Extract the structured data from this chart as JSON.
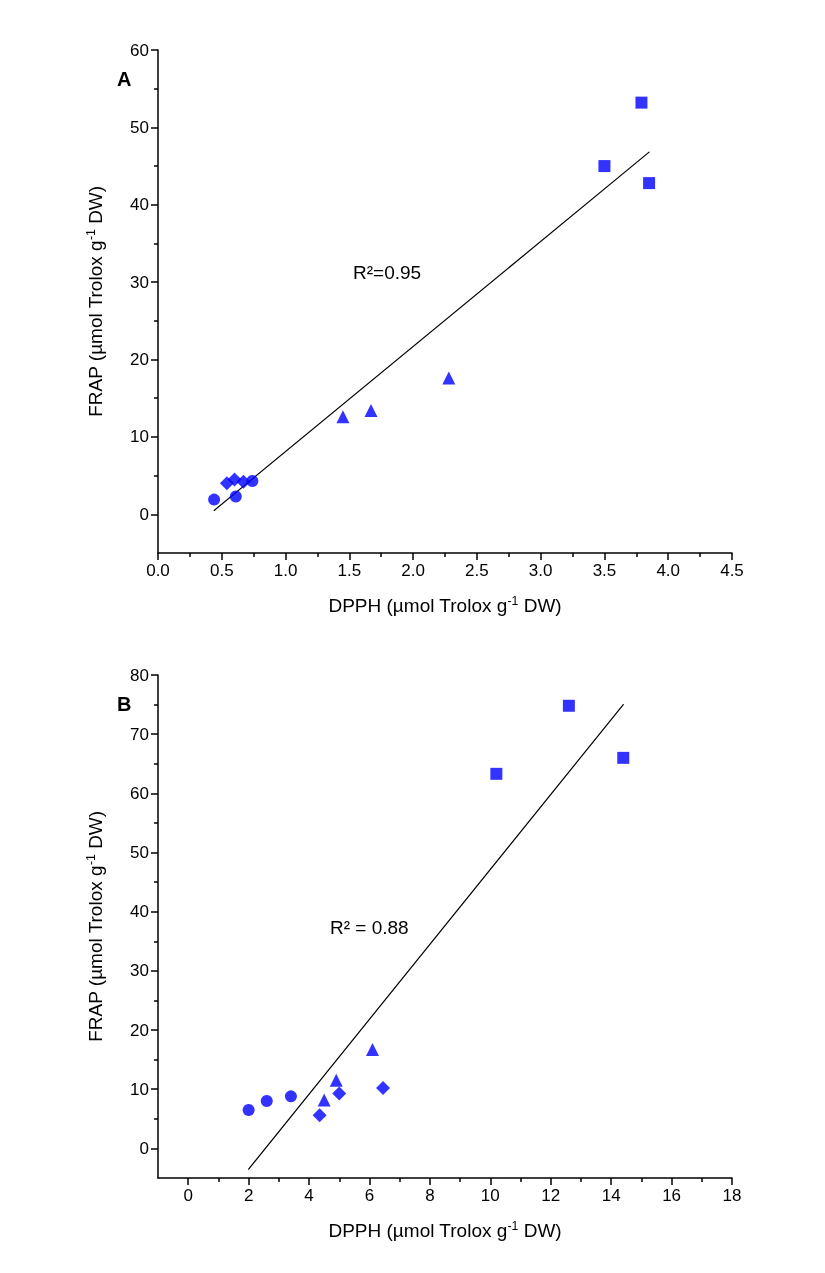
{
  "chart_data": [
    {
      "type": "scatter",
      "title": "A",
      "xlabel": "DPPH (µmol Trolox g$^{-1}$ DW)",
      "ylabel": "FRAP (µmol Trolox g$^{-1}$ DW)",
      "xlim": [
        0,
        4.5
      ],
      "xticks": [
        {
          "value": 0,
          "label": "0.0"
        },
        0.5,
        {
          "value": 1,
          "label": "1.0"
        },
        1.5,
        {
          "value": 2,
          "label": "2.0"
        },
        2.5,
        {
          "value": 3,
          "label": "3.0"
        },
        3.5,
        {
          "value": 4,
          "label": "4.0"
        },
        4.5
      ],
      "ylim": [
        -5,
        60
      ],
      "yticks": [
        0,
        10,
        20,
        30,
        40,
        50,
        60
      ],
      "grid": false,
      "series": [
        {
          "color": "#0000ff",
          "marker": "circle",
          "x": [
            0.44,
            0.61,
            0.74
          ],
          "values": [
            1.9,
            2.3,
            4.3
          ]
        },
        {
          "color": "#0000ff",
          "marker": "diamond",
          "x": [
            0.54,
            0.6,
            0.67
          ],
          "values": [
            4.0,
            4.5,
            4.2
          ]
        },
        {
          "color": "#0000ff",
          "marker": "triangle",
          "x": [
            1.45,
            1.67,
            2.28
          ],
          "values": [
            12.6,
            13.4,
            17.6
          ]
        },
        {
          "color": "#0000ff",
          "marker": "square",
          "x": [
            3.5,
            3.79,
            3.85
          ],
          "values": [
            45,
            53.2,
            42.8
          ]
        },
        {
          "type": "line",
          "color": "#000000",
          "marker": "none",
          "line_style": "solid",
          "x": [
            0.44,
            3.85
          ],
          "values": [
            0.5,
            46.8
          ]
        }
      ],
      "annotations": [
        "R²=0.95"
      ]
    },
    {
      "type": "scatter",
      "title": "B",
      "xlabel": "DPPH (µmol Trolox g$^{-1}$ DW)",
      "ylabel": "FRAP (µmol Trolox g$^{-1}$ DW)",
      "xlim": [
        -1,
        18
      ],
      "xticks": [
        0,
        2,
        4,
        6,
        8,
        10,
        12,
        14,
        16,
        18
      ],
      "ylim": [
        -5,
        80
      ],
      "yticks": [
        0,
        10,
        20,
        30,
        40,
        50,
        60,
        70,
        80
      ],
      "grid": false,
      "series": [
        {
          "color": "#0000ff",
          "marker": "circle",
          "x": [
            2.0,
            2.6,
            3.4
          ],
          "values": [
            6.5,
            8.0,
            8.8
          ]
        },
        {
          "color": "#0000ff",
          "marker": "triangle",
          "x": [
            4.5,
            4.9,
            6.1
          ],
          "values": [
            8.2,
            11.5,
            16.7
          ]
        },
        {
          "color": "#0000ff",
          "marker": "diamond",
          "x": [
            4.35,
            5.0,
            6.45
          ],
          "values": [
            5.6,
            9.3,
            10.2
          ]
        },
        {
          "color": "#0000ff",
          "marker": "square",
          "x": [
            10.2,
            12.6,
            14.4
          ],
          "values": [
            63.3,
            74.8,
            66
          ]
        },
        {
          "type": "line",
          "color": "#000000",
          "marker": "none",
          "line_style": "solid",
          "x": [
            2.0,
            14.4
          ],
          "values": [
            -3.5,
            75
          ]
        }
      ],
      "annotations": [
        "R² = 0.88"
      ]
    }
  ]
}
